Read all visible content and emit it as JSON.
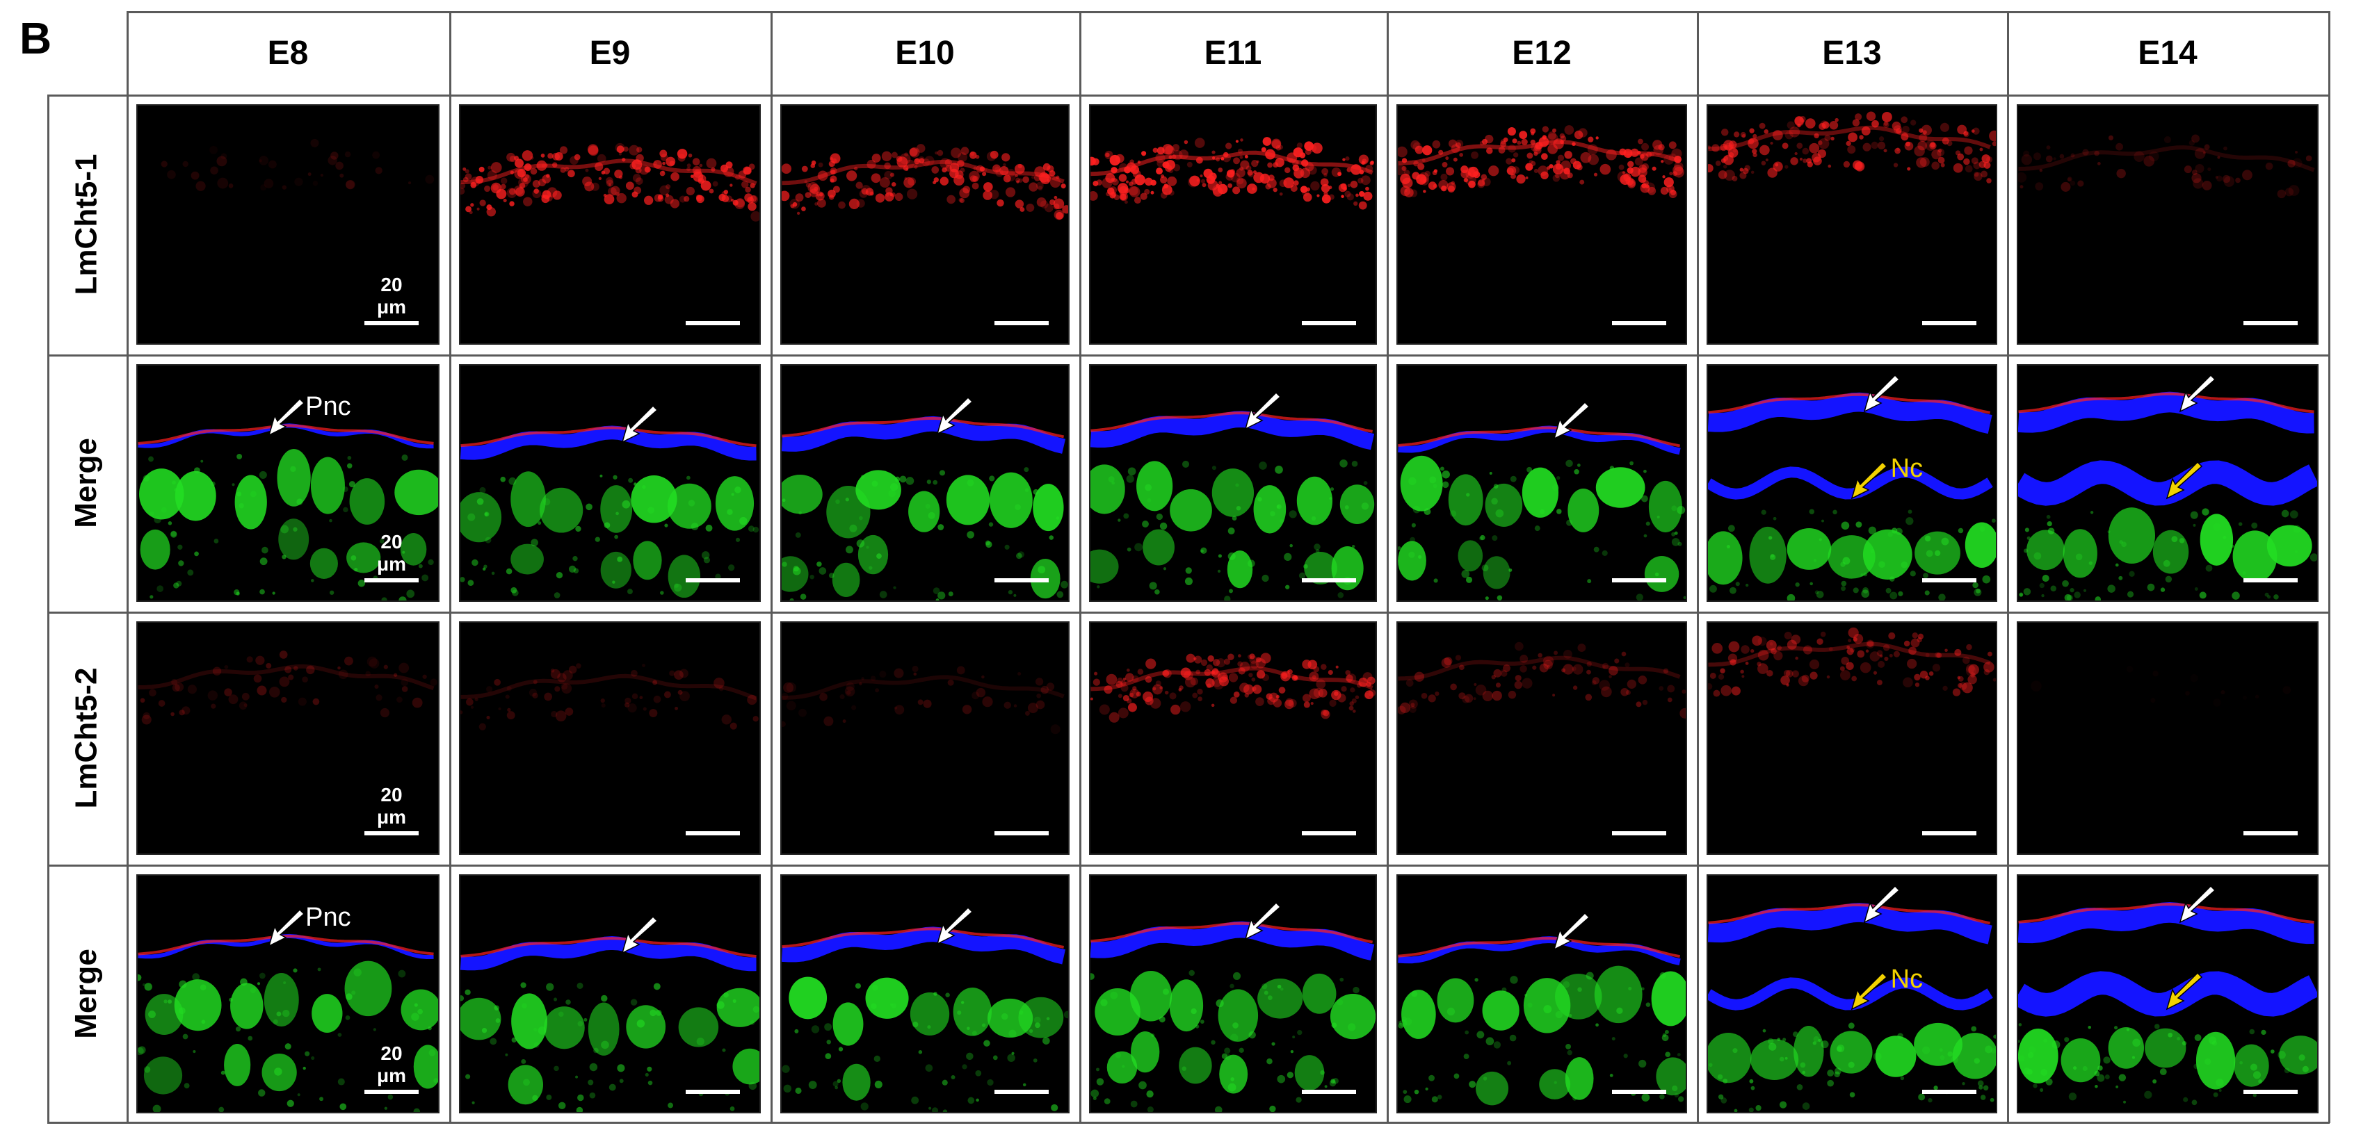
{
  "panel_letter": "B",
  "columns": [
    "E8",
    "E9",
    "E10",
    "E11",
    "E12",
    "E13",
    "E14"
  ],
  "rows": [
    {
      "label": "LmCht5-1",
      "type": "red"
    },
    {
      "label": "Merge",
      "type": "merge"
    },
    {
      "label": "LmCht5-2",
      "type": "red"
    },
    {
      "label": "Merge",
      "type": "merge"
    }
  ],
  "scale_bar_label": "20 μm",
  "annotations": {
    "pnc": "Pnc",
    "nc": "Nc"
  },
  "colors": {
    "chitinase_signal": "#ff2020",
    "nuclei": "#22dd22",
    "cuticle": "#1414ff",
    "white_arrow": "#ffffff",
    "yellow_arrow": "#f2d200",
    "background": "#000000"
  },
  "icons": {
    "pnc_arrow": "white-arrow-icon",
    "nc_arrow": "yellow-arrow-icon"
  }
}
